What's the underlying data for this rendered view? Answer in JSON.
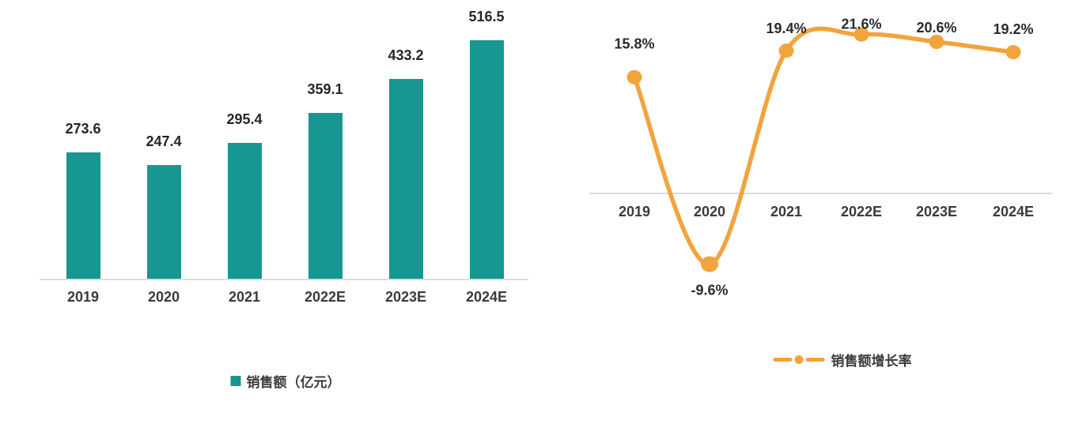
{
  "page": {
    "background": "#ffffff",
    "description": "dual-chart figure: sales bar chart and sales growth-rate line chart"
  },
  "chart_data": [
    {
      "type": "bar",
      "categories": [
        "2019",
        "2020",
        "2021",
        "2022E",
        "2023E",
        "2024E"
      ],
      "values": [
        273.6,
        247.4,
        295.4,
        359.1,
        433.2,
        516.5
      ],
      "value_labels": [
        "273.6",
        "247.4",
        "295.4",
        "359.1",
        "433.2",
        "516.5"
      ],
      "series_name": "销售额（亿元）",
      "color": "#179692",
      "axis_color": "#dcdcdc",
      "value_label_color": "#262626",
      "tick_color": "#3b3b3b",
      "ylim": [
        0,
        560
      ],
      "grid": false,
      "legend_position": "bottom"
    },
    {
      "type": "line",
      "categories": [
        "2019",
        "2020",
        "2021",
        "2022E",
        "2023E",
        "2024E"
      ],
      "values": [
        15.8,
        -9.6,
        19.4,
        21.6,
        20.6,
        19.2
      ],
      "value_labels": [
        "15.8%",
        "-9.6%",
        "19.4%",
        "21.6%",
        "20.6%",
        "19.2%"
      ],
      "series_name": "销售额增长率",
      "color": "#F2A43C",
      "axis_color": "#dcdcdc",
      "value_label_color": "#2a2a2a",
      "tick_color": "#3b3b3b",
      "ylim": [
        -14,
        27
      ],
      "grid": false,
      "smooth": true,
      "legend_position": "bottom",
      "label_dy": [
        -42,
        33,
        -28,
        -13,
        -18,
        -29
      ]
    }
  ]
}
